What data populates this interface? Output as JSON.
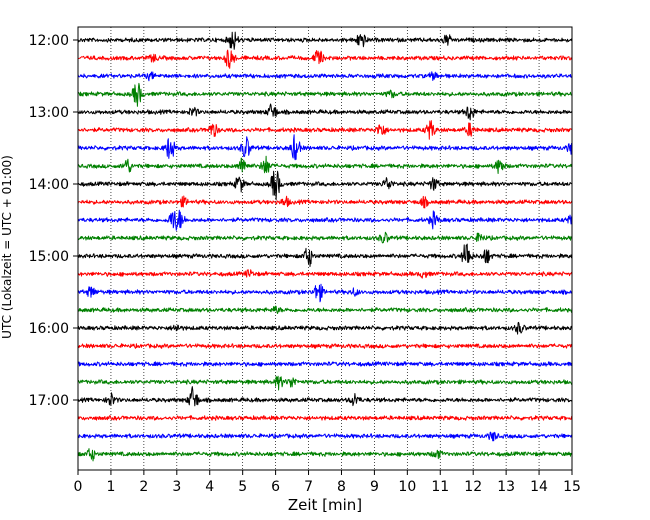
{
  "chart_data": {
    "type": "line",
    "title": "",
    "xlabel": "Zeit  [min]",
    "ylabel": "UTC (Lokalzeit = UTC + 01:00)",
    "xlim": [
      0,
      15
    ],
    "x_ticks": [
      "0",
      "1",
      "2",
      "3",
      "4",
      "5",
      "6",
      "7",
      "8",
      "9",
      "10",
      "11",
      "12",
      "13",
      "14",
      "15"
    ],
    "y_tick_labels": [
      "12:00",
      "13:00",
      "14:00",
      "15:00",
      "16:00",
      "17:00"
    ],
    "grid": "vertical dotted lines at each minute",
    "trace_interval_minutes": 15,
    "color_cycle": [
      "#000000",
      "#ff0000",
      "#0000ff",
      "#008000"
    ],
    "traces": [
      {
        "start": "12:00",
        "events": [
          [
            4.7,
            10
          ],
          [
            8.6,
            8
          ],
          [
            11.2,
            5
          ]
        ]
      },
      {
        "start": "12:15",
        "events": [
          [
            4.6,
            10
          ],
          [
            7.3,
            8
          ],
          [
            2.3,
            3
          ]
        ]
      },
      {
        "start": "12:30",
        "events": [
          [
            2.2,
            3
          ],
          [
            10.8,
            3
          ]
        ]
      },
      {
        "start": "12:45",
        "events": [
          [
            1.8,
            12
          ],
          [
            9.5,
            3
          ]
        ]
      },
      {
        "start": "13:00",
        "events": [
          [
            5.9,
            8
          ],
          [
            11.9,
            8
          ],
          [
            3.5,
            4
          ]
        ]
      },
      {
        "start": "13:15",
        "events": [
          [
            4.1,
            7
          ],
          [
            9.2,
            7
          ],
          [
            10.7,
            9
          ],
          [
            11.9,
            6
          ]
        ]
      },
      {
        "start": "13:30",
        "events": [
          [
            2.8,
            12
          ],
          [
            5.1,
            11
          ],
          [
            6.6,
            13
          ],
          [
            15.0,
            6
          ]
        ]
      },
      {
        "start": "13:45",
        "events": [
          [
            1.5,
            7
          ],
          [
            5.0,
            8
          ],
          [
            5.7,
            9
          ],
          [
            12.8,
            7
          ]
        ]
      },
      {
        "start": "14:00",
        "events": [
          [
            4.9,
            8
          ],
          [
            6.0,
            16
          ],
          [
            9.4,
            6
          ],
          [
            10.8,
            6
          ]
        ]
      },
      {
        "start": "14:15",
        "events": [
          [
            3.2,
            4
          ],
          [
            6.3,
            4
          ],
          [
            10.5,
            4
          ]
        ]
      },
      {
        "start": "14:30",
        "events": [
          [
            2.9,
            10
          ],
          [
            3.1,
            8
          ],
          [
            10.8,
            7
          ],
          [
            15.0,
            5
          ]
        ]
      },
      {
        "start": "14:45",
        "events": [
          [
            9.3,
            5
          ],
          [
            12.2,
            4
          ]
        ]
      },
      {
        "start": "15:00",
        "events": [
          [
            7.0,
            10
          ],
          [
            11.8,
            14
          ],
          [
            12.4,
            7
          ]
        ]
      },
      {
        "start": "15:15",
        "events": [
          [
            5.2,
            3
          ],
          [
            10.5,
            3
          ]
        ]
      },
      {
        "start": "15:30",
        "events": [
          [
            0.4,
            5
          ],
          [
            7.3,
            10
          ],
          [
            8.4,
            3
          ]
        ]
      },
      {
        "start": "15:45",
        "events": [
          [
            6.0,
            3
          ]
        ]
      },
      {
        "start": "16:00",
        "events": [
          [
            13.4,
            5
          ],
          [
            3.0,
            3
          ]
        ]
      },
      {
        "start": "16:15",
        "events": []
      },
      {
        "start": "16:30",
        "events": []
      },
      {
        "start": "16:45",
        "events": [
          [
            6.1,
            6
          ],
          [
            6.5,
            5
          ]
        ]
      },
      {
        "start": "17:00",
        "events": [
          [
            3.5,
            13
          ],
          [
            1.0,
            6
          ],
          [
            8.4,
            6
          ]
        ]
      },
      {
        "start": "17:15",
        "events": []
      },
      {
        "start": "17:30",
        "events": [
          [
            12.6,
            4
          ]
        ]
      },
      {
        "start": "17:45",
        "events": [
          [
            0.4,
            6
          ],
          [
            10.9,
            4
          ]
        ]
      }
    ]
  }
}
